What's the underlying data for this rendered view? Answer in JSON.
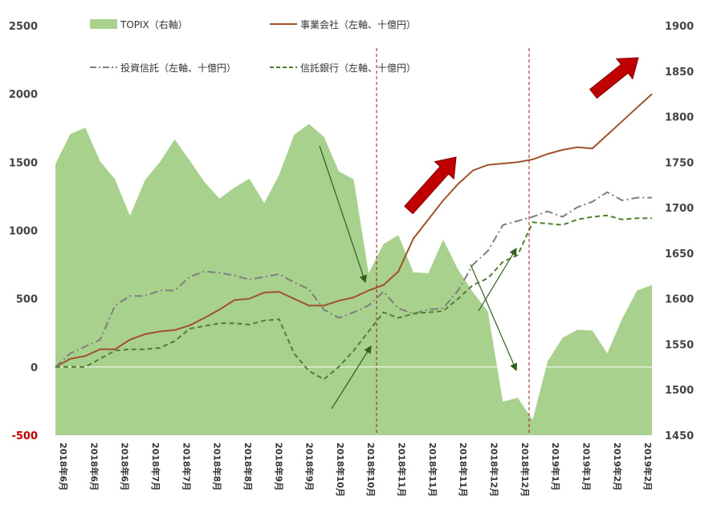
{
  "chart_data": {
    "type": "line",
    "legend": [
      "TOPIX（右軸）",
      "事業会社（左軸、十億円）",
      "投資信託（左軸、十億円）",
      "信託銀行（左軸、十億円）"
    ],
    "left_axis": {
      "ylim": [
        -500,
        2500
      ],
      "ticks": [
        "2500",
        "2000",
        "1500",
        "1000",
        "500",
        "0",
        "-500"
      ]
    },
    "right_axis": {
      "ylim": [
        1450,
        1900
      ],
      "ticks": [
        "1900",
        "1850",
        "1800",
        "1750",
        "1700",
        "1650",
        "1600",
        "1550",
        "1500",
        "1450"
      ]
    },
    "x_labels": [
      "2018年6月",
      "2018年6月",
      "2018年6月",
      "2018年7月",
      "2018年7月",
      "2018年8月",
      "2018年8月",
      "2018年9月",
      "2018年9月",
      "2018年10月",
      "2018年10月",
      "2018年11月",
      "2018年11月",
      "2018年11月",
      "2018年12月",
      "2018年12月",
      "2019年1月",
      "2019年1月",
      "2019年2月",
      "2019年2月"
    ],
    "series": [
      {
        "name": "TOPIX（右軸）",
        "axis": "right",
        "type": "area",
        "color": "#a9d18e",
        "values": [
          1748,
          1781,
          1788,
          1751,
          1731,
          1691,
          1730,
          1750,
          1775,
          1752,
          1728,
          1710,
          1722,
          1732,
          1705,
          1736,
          1780,
          1792,
          1778,
          1740,
          1731,
          1628,
          1660,
          1670,
          1629,
          1628,
          1665,
          1632,
          1607,
          1586,
          1487,
          1491,
          1467,
          1531,
          1557,
          1566,
          1565,
          1540,
          1578,
          1609,
          1615
        ]
      },
      {
        "name": "事業会社（左軸、十億円）",
        "axis": "left",
        "type": "line",
        "color": "#a0522d",
        "values": [
          0,
          60,
          80,
          130,
          130,
          200,
          240,
          260,
          270,
          305,
          360,
          420,
          490,
          500,
          545,
          550,
          500,
          450,
          450,
          485,
          510,
          560,
          600,
          700,
          940,
          1080,
          1220,
          1340,
          1440,
          1480,
          1490,
          1500,
          1520,
          1560,
          1590,
          1610,
          1600,
          1700,
          1800,
          1900,
          2000
        ]
      },
      {
        "name": "投資信託（左軸、十億円）",
        "axis": "left",
        "type": "line",
        "dash": "dashdot",
        "color": "#7f7f7f",
        "values": [
          0,
          100,
          150,
          200,
          450,
          520,
          520,
          560,
          560,
          660,
          700,
          690,
          670,
          640,
          660,
          680,
          620,
          570,
          420,
          360,
          400,
          450,
          550,
          430,
          390,
          420,
          430,
          560,
          750,
          850,
          1040,
          1070,
          1100,
          1140,
          1100,
          1170,
          1210,
          1280,
          1220,
          1240,
          1240
        ]
      },
      {
        "name": "信託銀行（左軸、十億円）",
        "axis": "left",
        "type": "line",
        "dash": "dash",
        "color": "#4f7f2f",
        "values": [
          0,
          0,
          0,
          60,
          120,
          130,
          130,
          140,
          190,
          280,
          300,
          320,
          320,
          310,
          340,
          350,
          100,
          -30,
          -90,
          0,
          120,
          260,
          400,
          360,
          390,
          400,
          410,
          500,
          600,
          650,
          770,
          820,
          1060,
          1050,
          1040,
          1080,
          1100,
          1110,
          1080,
          1090,
          1090
        ]
      }
    ]
  }
}
